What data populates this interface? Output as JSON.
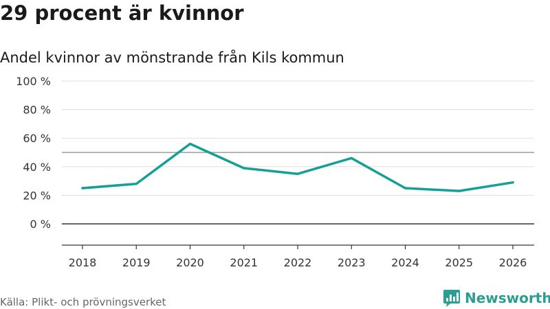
{
  "header": {
    "title": "29 procent är kvinnor",
    "subtitle": "Andel kvinnor av mönstrande från Kils kommun"
  },
  "footer": {
    "source": "Källa: Plikt- och prövningsverket",
    "brand": "Newsworthy"
  },
  "colors": {
    "line": "#14a096",
    "grid": "#dddddd",
    "axis": "#333333",
    "brand": "#2a9d95"
  },
  "icons": {
    "logo": "newsworthy-logo-icon"
  },
  "chart_data": {
    "type": "line",
    "title": "29 procent är kvinnor",
    "subtitle": "Andel kvinnor av mönstrande från Kils kommun",
    "xlabel": "",
    "ylabel": "",
    "x": [
      "2018",
      "2019",
      "2020",
      "2021",
      "2022",
      "2023",
      "2024",
      "2025",
      "2026"
    ],
    "series": [
      {
        "name": "Andel kvinnor",
        "values": [
          25,
          28,
          56,
          39,
          35,
          46,
          25,
          23,
          29
        ]
      }
    ],
    "ylim": [
      -15,
      100
    ],
    "yticks": [
      0,
      20,
      40,
      60,
      80,
      100
    ],
    "ytick_labels": [
      "0 %",
      "20 %",
      "40 %",
      "60 %",
      "80 %",
      "100 %"
    ],
    "reference_line": 50,
    "grid": true,
    "legend": "none"
  }
}
